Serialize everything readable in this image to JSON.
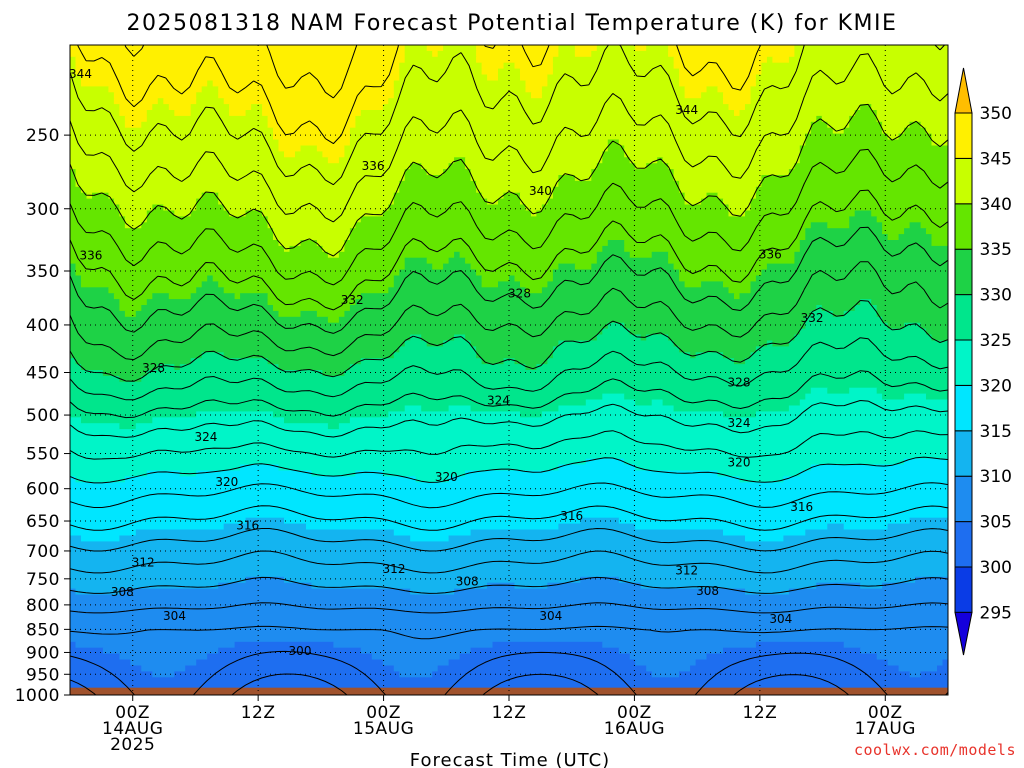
{
  "chart_data": {
    "type": "filled_contour",
    "title": "2025081318 NAM Forecast Potential Temperature (K) for KMIE",
    "xlabel": "Forecast Time (UTC)",
    "ylabel": "",
    "y_axis": "pressure (hPa), reversed",
    "y_ticks": [
      250,
      300,
      350,
      400,
      450,
      500,
      550,
      600,
      650,
      700,
      750,
      800,
      850,
      900,
      950,
      1000
    ],
    "x_ticks": [
      {
        "hour": 6,
        "labels": [
          "00Z",
          "14AUG",
          "2025"
        ]
      },
      {
        "hour": 18,
        "labels": [
          "12Z"
        ]
      },
      {
        "hour": 30,
        "labels": [
          "00Z",
          "15AUG"
        ]
      },
      {
        "hour": 42,
        "labels": [
          "12Z"
        ]
      },
      {
        "hour": 54,
        "labels": [
          "00Z",
          "16AUG"
        ]
      },
      {
        "hour": 66,
        "labels": [
          "12Z"
        ]
      },
      {
        "hour": 78,
        "labels": [
          "00Z",
          "17AUG"
        ]
      }
    ],
    "x_range_hours": [
      0,
      84
    ],
    "y_range_hPa": [
      200,
      1000
    ],
    "grid": "dotted",
    "colorbar": {
      "levels": [
        295,
        300,
        305,
        310,
        315,
        320,
        325,
        330,
        335,
        340,
        345,
        350
      ],
      "colors": [
        "#1400dc",
        "#0a3ce6",
        "#1e6ef0",
        "#1e8cf0",
        "#14b4f0",
        "#00e6ff",
        "#00f5c8",
        "#00e68c",
        "#1ed246",
        "#64e600",
        "#c8ff00",
        "#fff000",
        "#ffbe00"
      ]
    },
    "contour_labels": [
      {
        "v": 344,
        "h": 1,
        "p": 215
      },
      {
        "v": 344,
        "h": 59,
        "p": 235
      },
      {
        "v": 340,
        "h": 45,
        "p": 287
      },
      {
        "v": 336,
        "h": 29,
        "p": 270
      },
      {
        "v": 336,
        "h": 67,
        "p": 336
      },
      {
        "v": 336,
        "h": 2,
        "p": 337
      },
      {
        "v": 332,
        "h": 27,
        "p": 376
      },
      {
        "v": 332,
        "h": 71,
        "p": 393
      },
      {
        "v": 328,
        "h": 8,
        "p": 445
      },
      {
        "v": 328,
        "h": 43,
        "p": 370
      },
      {
        "v": 328,
        "h": 64,
        "p": 461
      },
      {
        "v": 324,
        "h": 13,
        "p": 528
      },
      {
        "v": 324,
        "h": 41,
        "p": 482
      },
      {
        "v": 324,
        "h": 64,
        "p": 510
      },
      {
        "v": 320,
        "h": 15,
        "p": 590
      },
      {
        "v": 320,
        "h": 36,
        "p": 583
      },
      {
        "v": 320,
        "h": 64,
        "p": 562
      },
      {
        "v": 316,
        "h": 17,
        "p": 657
      },
      {
        "v": 316,
        "h": 48,
        "p": 642
      },
      {
        "v": 316,
        "h": 70,
        "p": 628
      },
      {
        "v": 312,
        "h": 7,
        "p": 720
      },
      {
        "v": 312,
        "h": 31,
        "p": 732
      },
      {
        "v": 312,
        "h": 59,
        "p": 735
      },
      {
        "v": 308,
        "h": 5,
        "p": 775
      },
      {
        "v": 308,
        "h": 38,
        "p": 755
      },
      {
        "v": 308,
        "h": 61,
        "p": 773
      },
      {
        "v": 304,
        "h": 10,
        "p": 822
      },
      {
        "v": 304,
        "h": 46,
        "p": 822
      },
      {
        "v": 304,
        "h": 68,
        "p": 828
      },
      {
        "v": 300,
        "h": 22,
        "p": 897
      }
    ],
    "credit": "coolwx.com/models"
  }
}
